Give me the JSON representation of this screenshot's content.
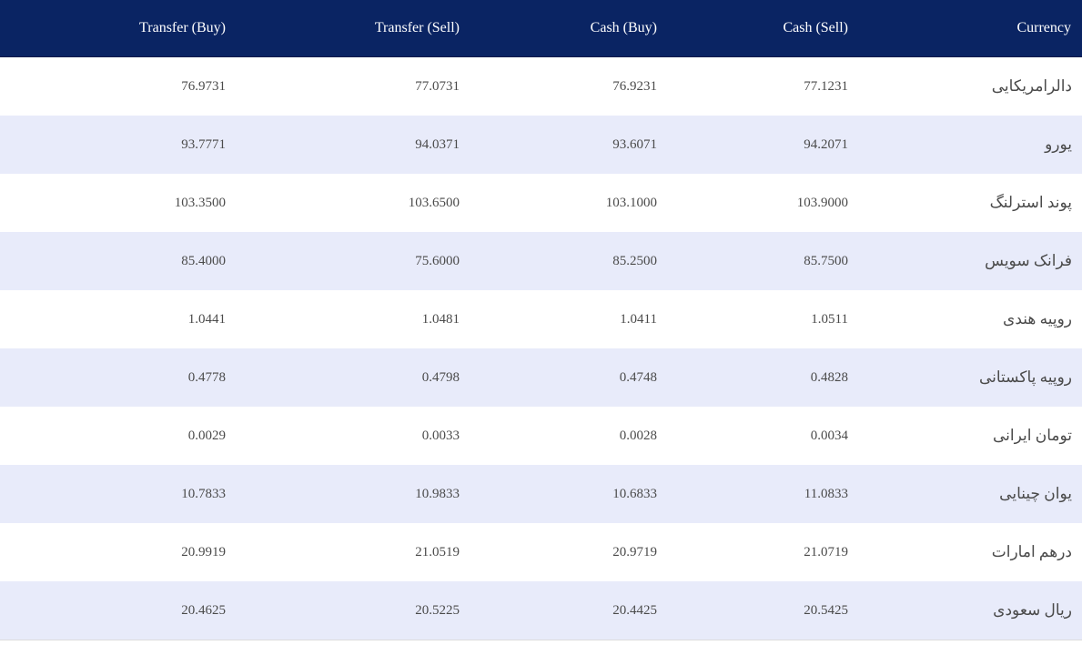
{
  "table": {
    "headers": {
      "transfer_buy": "Transfer (Buy)",
      "transfer_sell": "Transfer (Sell)",
      "cash_buy": "Cash (Buy)",
      "cash_sell": "Cash (Sell)",
      "currency": "Currency"
    },
    "rows": [
      {
        "transfer_buy": "76.9731",
        "transfer_sell": "77.0731",
        "cash_buy": "76.9231",
        "cash_sell": "77.1231",
        "currency": "دالرامریکایی"
      },
      {
        "transfer_buy": "93.7771",
        "transfer_sell": "94.0371",
        "cash_buy": "93.6071",
        "cash_sell": "94.2071",
        "currency": "یورو"
      },
      {
        "transfer_buy": "103.3500",
        "transfer_sell": "103.6500",
        "cash_buy": "103.1000",
        "cash_sell": "103.9000",
        "currency": "پوند استرلنگ"
      },
      {
        "transfer_buy": "85.4000",
        "transfer_sell": "75.6000",
        "cash_buy": "85.2500",
        "cash_sell": "85.7500",
        "currency": "فرانک سویس"
      },
      {
        "transfer_buy": "1.0441",
        "transfer_sell": "1.0481",
        "cash_buy": "1.0411",
        "cash_sell": "1.0511",
        "currency": "روپیه هندی"
      },
      {
        "transfer_buy": "0.4778",
        "transfer_sell": "0.4798",
        "cash_buy": "0.4748",
        "cash_sell": "0.4828",
        "currency": "روپیه پاکستانی"
      },
      {
        "transfer_buy": "0.0029",
        "transfer_sell": "0.0033",
        "cash_buy": "0.0028",
        "cash_sell": "0.0034",
        "currency": "تومان ایرانی"
      },
      {
        "transfer_buy": "10.7833",
        "transfer_sell": "10.9833",
        "cash_buy": "10.6833",
        "cash_sell": "11.0833",
        "currency": "یوان چینایی"
      },
      {
        "transfer_buy": "20.9919",
        "transfer_sell": "21.0519",
        "cash_buy": "20.9719",
        "cash_sell": "21.0719",
        "currency": "درهم امارات"
      },
      {
        "transfer_buy": "20.4625",
        "transfer_sell": "20.5225",
        "cash_buy": "20.4425",
        "cash_sell": "20.5425",
        "currency": "ریال سعودی"
      }
    ]
  },
  "colors": {
    "header_bg": "#0a2463",
    "header_text": "#ffffff",
    "row_alt_bg": "#e8ebfa",
    "row_bg": "#ffffff",
    "cell_text": "#4a4a4a"
  }
}
